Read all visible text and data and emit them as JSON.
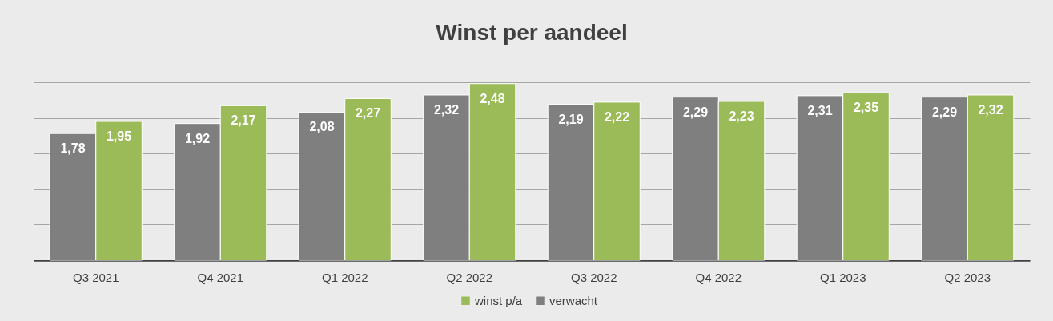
{
  "chart_data": {
    "type": "bar",
    "title": "Winst per aandeel",
    "categories": [
      "Q3 2021",
      "Q4 2021",
      "Q1 2022",
      "Q2 2022",
      "Q3 2022",
      "Q4 2022",
      "Q1 2023",
      "Q2 2023"
    ],
    "series": [
      {
        "name": "verwacht",
        "color": "#7f7f7f",
        "values": [
          1.78,
          1.92,
          2.08,
          2.32,
          2.19,
          2.29,
          2.31,
          2.29
        ],
        "value_labels": [
          "1,78",
          "1,92",
          "2,08",
          "2,32",
          "2,19",
          "2,29",
          "2,31",
          "2,29"
        ]
      },
      {
        "name": "winst p/a",
        "color": "#9bbb59",
        "values": [
          1.95,
          2.17,
          2.27,
          2.48,
          2.22,
          2.23,
          2.35,
          2.32
        ],
        "value_labels": [
          "1,95",
          "2,17",
          "2,27",
          "2,48",
          "2,22",
          "2,23",
          "2,35",
          "2,32"
        ]
      }
    ],
    "grid": "y",
    "tick_labels": "x",
    "legend": "bottom"
  }
}
